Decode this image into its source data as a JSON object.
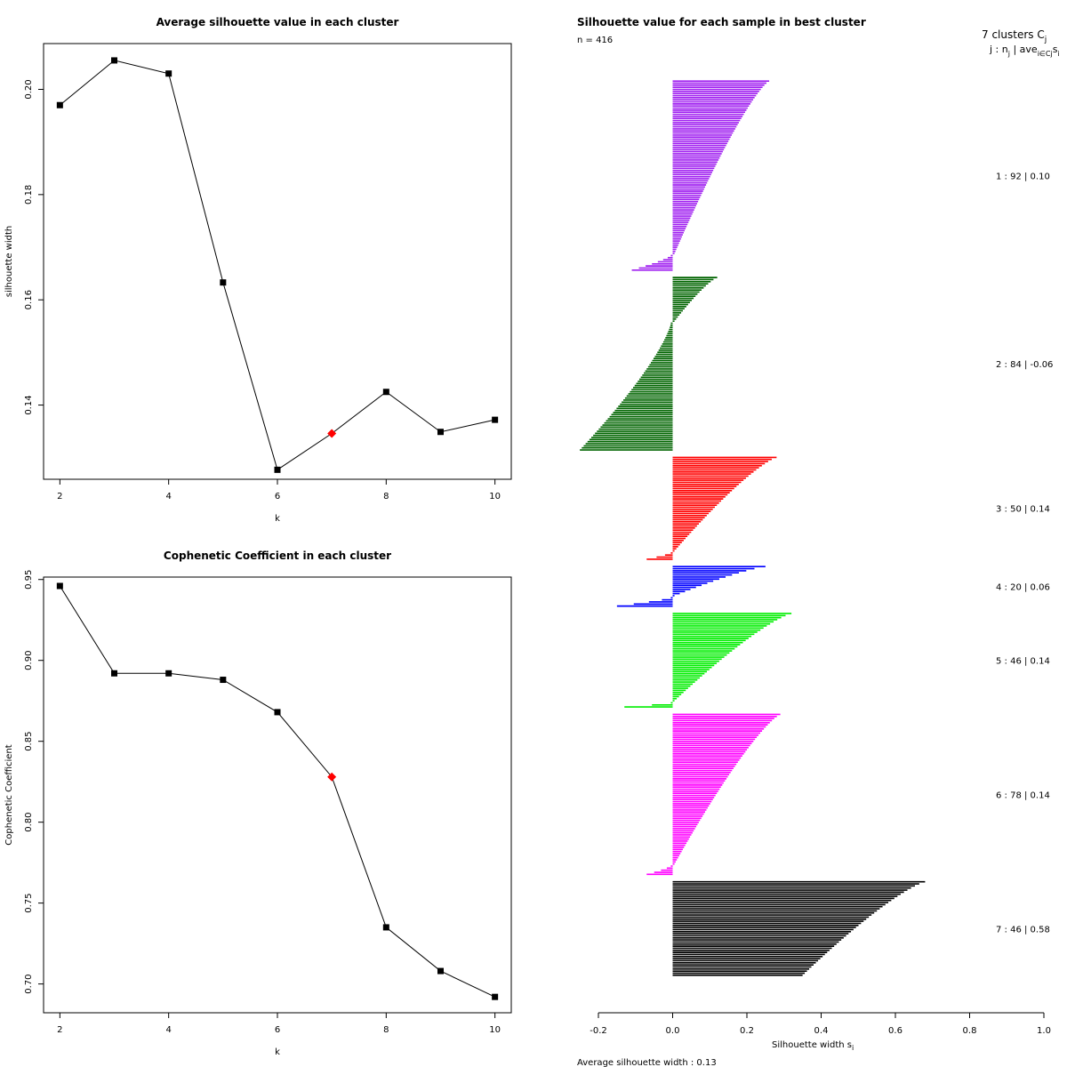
{
  "chart_data": [
    {
      "type": "line",
      "title": "Average silhouette value in each cluster",
      "xlabel": "k",
      "ylabel": "silhouette width",
      "x": [
        2,
        3,
        4,
        5,
        6,
        7,
        8,
        9,
        10
      ],
      "y": [
        0.197,
        0.2055,
        0.203,
        0.1633,
        0.1277,
        0.1346,
        0.1425,
        0.1349,
        0.1372
      ],
      "highlight_x": 7,
      "highlight_color": "#ff0000",
      "xlim": [
        1.7,
        10.3
      ],
      "ylim": [
        0.1259,
        0.2087
      ],
      "xticks": [
        2,
        4,
        6,
        8,
        10
      ],
      "yticks": [
        0.14,
        0.16,
        0.18,
        0.2
      ],
      "ytick_labels": [
        "0.14",
        "0.16",
        "0.18",
        "0.20"
      ],
      "grid": false
    },
    {
      "type": "line",
      "title": "Cophenetic Coefficient in each cluster",
      "xlabel": "k",
      "ylabel": "Cophenetic Coefficient",
      "x": [
        2,
        3,
        4,
        5,
        6,
        7,
        8,
        9,
        10
      ],
      "y": [
        0.946,
        0.892,
        0.892,
        0.888,
        0.868,
        0.828,
        0.735,
        0.708,
        0.692
      ],
      "highlight_x": 7,
      "highlight_color": "#ff0000",
      "xlim": [
        1.7,
        10.3
      ],
      "ylim": [
        0.6822,
        0.9515
      ],
      "xticks": [
        2,
        4,
        6,
        8,
        10
      ],
      "yticks": [
        0.7,
        0.75,
        0.8,
        0.85,
        0.9,
        0.95
      ],
      "ytick_labels": [
        "0.70",
        "0.75",
        "0.80",
        "0.85",
        "0.90",
        "0.95"
      ],
      "grid": false
    },
    {
      "type": "bar",
      "orientation": "horizontal",
      "title": "Silhouette value for each sample in best cluster",
      "subtitle": "n = 416",
      "xlabel": "Silhouette width s",
      "xlabel_sub": "i",
      "footer": "Average silhouette width :  0.13",
      "xlim": [
        -0.2,
        1.0
      ],
      "xticks": [
        -0.2,
        0.0,
        0.2,
        0.4,
        0.6,
        0.8,
        1.0
      ],
      "xtick_labels": [
        "-0.2",
        "0.0",
        "0.2",
        "0.4",
        "0.6",
        "0.8",
        "1.0"
      ],
      "legend_header": "7 clusters  C",
      "legend_header_sub": "j",
      "legend_subheader": "j :  n",
      "legend_subheader_sub": "j",
      "legend_subheader_tail": " | ave",
      "legend_subheader_tail_sub": "i∈Cj",
      "legend_subheader_end": "s",
      "legend_subheader_end_sub": "i",
      "clusters": [
        {
          "id": 1,
          "n": 92,
          "ave": 0.1,
          "label": "1 :  92  |  0.10",
          "color": "#a020f0",
          "max": 0.26,
          "min": -0.11,
          "neg": 8
        },
        {
          "id": 2,
          "n": 84,
          "ave": -0.06,
          "label": "2 :  84  |  -0.06",
          "color": "#006400",
          "max": 0.12,
          "min": -0.25,
          "neg": 62
        },
        {
          "id": 3,
          "n": 50,
          "ave": 0.14,
          "label": "3 :  50  |  0.14",
          "color": "#ff0000",
          "max": 0.28,
          "min": -0.07,
          "neg": 4
        },
        {
          "id": 4,
          "n": 20,
          "ave": 0.06,
          "label": "4 :  20  |  0.06",
          "color": "#0000ff",
          "max": 0.25,
          "min": -0.15,
          "neg": 5
        },
        {
          "id": 5,
          "n": 46,
          "ave": 0.14,
          "label": "5 :  46  |  0.14",
          "color": "#00ee00",
          "max": 0.32,
          "min": -0.13,
          "neg": 3
        },
        {
          "id": 6,
          "n": 78,
          "ave": 0.14,
          "label": "6 :  78  |  0.14",
          "color": "#ff00ff",
          "max": 0.29,
          "min": -0.07,
          "neg": 5
        },
        {
          "id": 7,
          "n": 46,
          "ave": 0.58,
          "label": "7 :  46  |  0.58",
          "color": "#000000",
          "max": 0.68,
          "min": 0.35,
          "neg": 0
        }
      ]
    }
  ]
}
